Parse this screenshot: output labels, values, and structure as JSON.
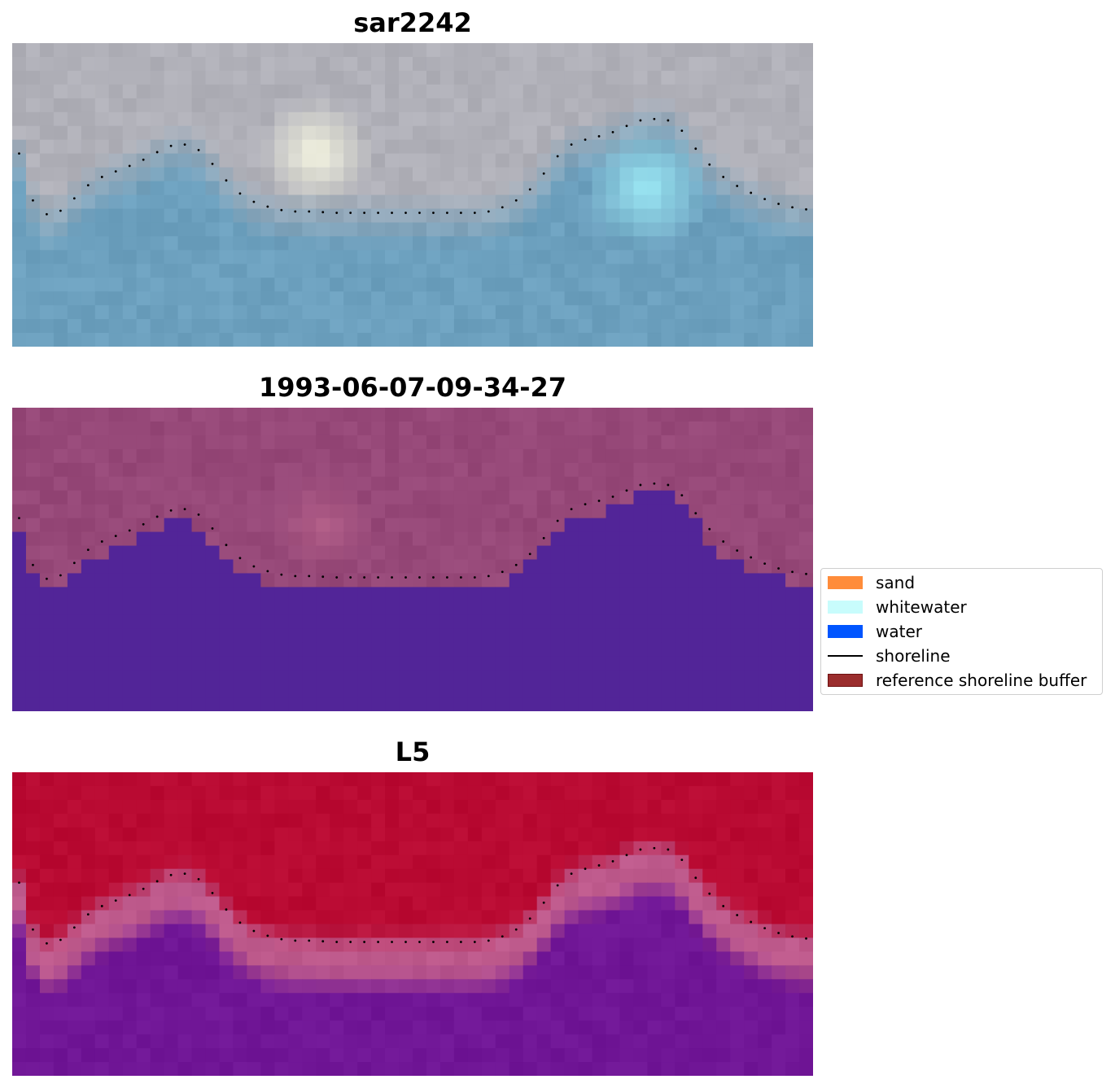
{
  "panels": [
    {
      "title": "sar2242",
      "style": "sar"
    },
    {
      "title": "1993-06-07-09-34-27",
      "style": "classified"
    },
    {
      "title": "L5",
      "style": "probability"
    }
  ],
  "legend": {
    "items": [
      {
        "label": "sand",
        "color": "#ff8c3a",
        "kind": "patch"
      },
      {
        "label": "whitewater",
        "color": "#c8fcfc",
        "kind": "patch"
      },
      {
        "label": "water",
        "color": "#0055ff",
        "kind": "patch"
      },
      {
        "label": "shoreline",
        "color": "#000000",
        "kind": "line"
      },
      {
        "label": "reference shoreline buffer",
        "color": "#9b2d2d",
        "kind": "patch"
      }
    ]
  },
  "chart_data": {
    "type": "heatmap",
    "title": "",
    "grid": false,
    "legend_placement": "center-right",
    "shoreline_profile": {
      "x": [
        0,
        1,
        2,
        3,
        4,
        5,
        6,
        7,
        8,
        9,
        10,
        11,
        12,
        13,
        14,
        15,
        16,
        17,
        18,
        19,
        20,
        21,
        22,
        23,
        24,
        25,
        26,
        27,
        28,
        29,
        30,
        31,
        32,
        33,
        34,
        35,
        36,
        37,
        38,
        39,
        40,
        41,
        42,
        43,
        44,
        45,
        46,
        47,
        48,
        49,
        50,
        51,
        52,
        53,
        54,
        55,
        56,
        57,
        58
      ],
      "y": [
        6,
        11,
        12.8,
        13,
        12.3,
        11.2,
        10.4,
        10,
        9.6,
        9.2,
        8.7,
        8.1,
        7.8,
        7.9,
        8.6,
        9.9,
        11,
        11.8,
        12.2,
        12.5,
        12.7,
        12.7,
        12.7,
        12.8,
        12.8,
        12.8,
        12.8,
        12.8,
        12.8,
        12.8,
        12.8,
        12.8,
        12.8,
        12.8,
        12.8,
        12.6,
        12.2,
        11.6,
        10.6,
        9.3,
        8.1,
        7.6,
        7.4,
        7.1,
        6.8,
        6.2,
        6.0,
        6.0,
        6.2,
        7.5,
        8.8,
        9.8,
        10.6,
        11.1,
        11.6,
        12.0,
        12.3,
        12.5,
        12.6
      ],
      "xlim": [
        0,
        58
      ],
      "ylim": [
        0,
        22
      ]
    }
  }
}
